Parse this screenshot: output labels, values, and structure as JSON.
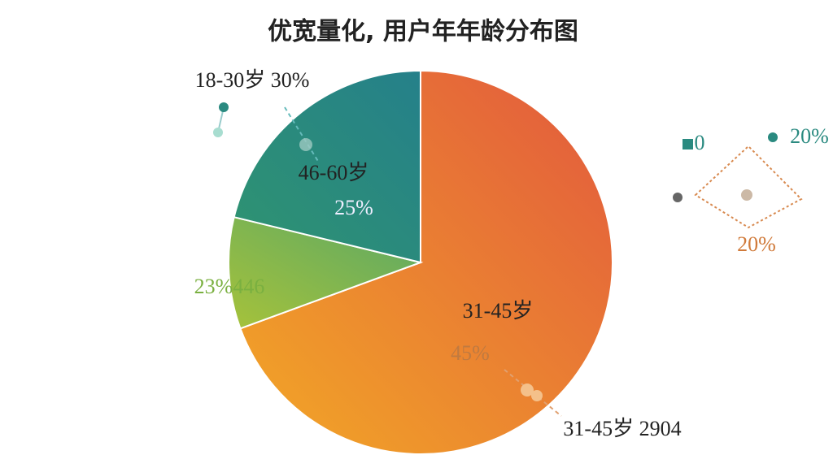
{
  "chart_data": {
    "type": "pie",
    "title": "优宽量化, 用户年年龄分布图",
    "categories": [
      "31-45岁",
      null,
      "46-60岁"
    ],
    "values": [
      69.4,
      9.4,
      21.2
    ],
    "colors": [
      "#e8803a",
      "#86b84c",
      "#2a8a80"
    ],
    "annotations": [
      "18-30岁 30%",
      "25%",
      "23%446",
      "45%",
      "31-45岁 2904",
      "0",
      "20%",
      "20%"
    ]
  }
}
